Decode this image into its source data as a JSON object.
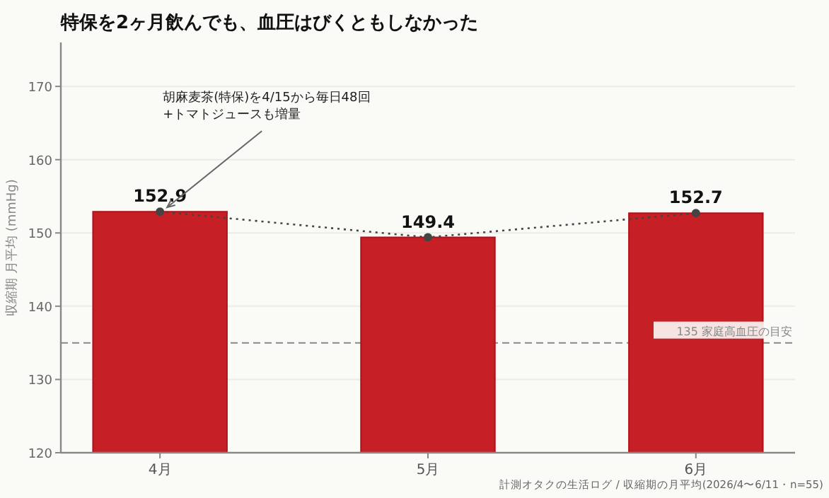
{
  "chart_data": {
    "type": "bar",
    "title": "特保を2ヶ月飲んでも、血圧はびくともしなかった",
    "ylabel": "収縮期 月平均 (mmHg)",
    "categories": [
      "4月",
      "5月",
      "6月"
    ],
    "series": [
      {
        "color": "#c62026",
        "values": [
          152.9,
          149.4,
          152.7
        ],
        "value_labels": [
          "152.9",
          "149.4",
          "152.7"
        ]
      },
      {
        "type": "line",
        "color": "#444444",
        "values": [
          152.9,
          149.4,
          152.7
        ],
        "marker": "circle",
        "line_style": "dotted"
      }
    ],
    "ylim": [
      120,
      176
    ],
    "yticks": [
      120,
      130,
      140,
      150,
      160,
      170
    ],
    "grid": "y",
    "ref_lines": [
      {
        "axis": "y",
        "value": 135,
        "label": "135 家庭高血圧の目安",
        "color": "#888888",
        "line_style": "dashed"
      }
    ],
    "annotations": [
      {
        "text": "胡麻麦茶(特保)を4/15から毎日48回\n+トマトジュースも増量",
        "x": "4月",
        "y": 152.9
      },
      "計測オタクの生活ログ / 収縮期の月平均(2026/4〜6/11・n=55)"
    ]
  }
}
